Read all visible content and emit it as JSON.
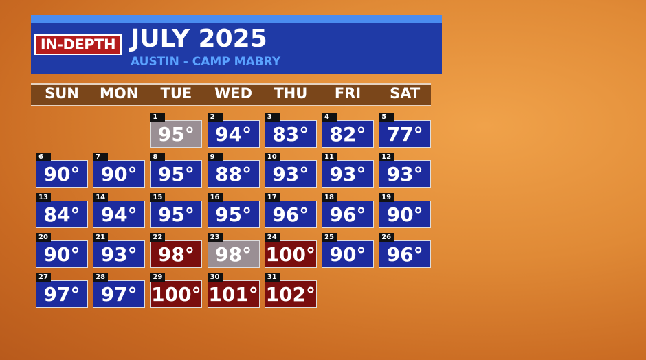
{
  "header": {
    "badge": "IN-DEPTH",
    "title": "JULY 2025",
    "subtitle": "AUSTIN - CAMP MABRY"
  },
  "weekdays": [
    "SUN",
    "MON",
    "TUE",
    "WED",
    "THU",
    "FRI",
    "SAT"
  ],
  "days": [
    {
      "day": "1",
      "temp": "95°",
      "color": "gray"
    },
    {
      "day": "2",
      "temp": "94°",
      "color": "blue"
    },
    {
      "day": "3",
      "temp": "83°",
      "color": "blue"
    },
    {
      "day": "4",
      "temp": "82°",
      "color": "blue"
    },
    {
      "day": "5",
      "temp": "77°",
      "color": "blue"
    },
    {
      "day": "6",
      "temp": "90°",
      "color": "blue"
    },
    {
      "day": "7",
      "temp": "90°",
      "color": "blue"
    },
    {
      "day": "8",
      "temp": "95°",
      "color": "blue"
    },
    {
      "day": "9",
      "temp": "88°",
      "color": "blue"
    },
    {
      "day": "10",
      "temp": "93°",
      "color": "blue"
    },
    {
      "day": "11",
      "temp": "93°",
      "color": "blue"
    },
    {
      "day": "12",
      "temp": "93°",
      "color": "blue"
    },
    {
      "day": "13",
      "temp": "84°",
      "color": "blue"
    },
    {
      "day": "14",
      "temp": "94°",
      "color": "blue"
    },
    {
      "day": "15",
      "temp": "95°",
      "color": "blue"
    },
    {
      "day": "16",
      "temp": "95°",
      "color": "blue"
    },
    {
      "day": "17",
      "temp": "96°",
      "color": "blue"
    },
    {
      "day": "18",
      "temp": "96°",
      "color": "blue"
    },
    {
      "day": "19",
      "temp": "90°",
      "color": "blue"
    },
    {
      "day": "20",
      "temp": "90°",
      "color": "blue"
    },
    {
      "day": "21",
      "temp": "93°",
      "color": "blue"
    },
    {
      "day": "22",
      "temp": "98°",
      "color": "red"
    },
    {
      "day": "23",
      "temp": "98°",
      "color": "gray"
    },
    {
      "day": "24",
      "temp": "100°",
      "color": "red"
    },
    {
      "day": "25",
      "temp": "90°",
      "color": "blue"
    },
    {
      "day": "26",
      "temp": "96°",
      "color": "blue"
    },
    {
      "day": "27",
      "temp": "97°",
      "color": "blue"
    },
    {
      "day": "28",
      "temp": "97°",
      "color": "blue"
    },
    {
      "day": "29",
      "temp": "100°",
      "color": "red"
    },
    {
      "day": "30",
      "temp": "101°",
      "color": "red"
    },
    {
      "day": "31",
      "temp": "102°",
      "color": "red"
    }
  ]
}
